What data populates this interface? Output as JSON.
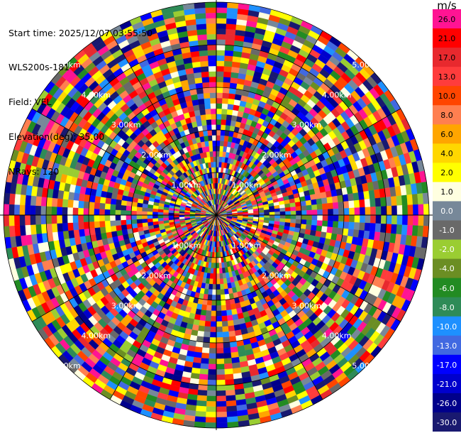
{
  "header": {
    "start_time": "Start time: 2025/12/07 03:55:50",
    "site": "WLS200s-181",
    "field": "Field: VEL",
    "elevation": "Elevation(deg): 35.00",
    "nrays": "NRays: 120"
  },
  "colorbar": {
    "unit": "m/s",
    "bins": [
      {
        "label": "26.0",
        "color": "#ff1493"
      },
      {
        "label": "21.0",
        "color": "#ff0000"
      },
      {
        "label": "17.0",
        "color": "#e8292e"
      },
      {
        "label": "13.0",
        "color": "#ff3c3c"
      },
      {
        "label": "10.0",
        "color": "#ff4500"
      },
      {
        "label": "8.0",
        "color": "#ff7f50"
      },
      {
        "label": "6.0",
        "color": "#ffa500"
      },
      {
        "label": "4.0",
        "color": "#ffd700"
      },
      {
        "label": "2.0",
        "color": "#ffff00"
      },
      {
        "label": "1.0",
        "color": "#ffffe0"
      },
      {
        "label": "0.0",
        "color": "#778899"
      },
      {
        "label": "-1.0",
        "color": "#696969"
      },
      {
        "label": "-2.0",
        "color": "#9acd32"
      },
      {
        "label": "-4.0",
        "color": "#6b8e23"
      },
      {
        "label": "-6.0",
        "color": "#228b22"
      },
      {
        "label": "-8.0",
        "color": "#2e8b57"
      },
      {
        "label": "-10.0",
        "color": "#1e90ff"
      },
      {
        "label": "-13.0",
        "color": "#4169e1"
      },
      {
        "label": "-17.0",
        "color": "#0000ff"
      },
      {
        "label": "-21.0",
        "color": "#0000cd"
      },
      {
        "label": "-26.0",
        "color": "#00008b"
      },
      {
        "label": "-30.0",
        "color": "#191970"
      }
    ]
  },
  "chart_data": {
    "type": "heatmap",
    "projection": "polar PPI",
    "field": "VEL",
    "elevation_deg": 35.0,
    "n_rays": 120,
    "value_range": [
      -30.0,
      26.0
    ],
    "max_range_km": 5.0,
    "range_rings_km": [
      1.0,
      2.0,
      3.0,
      4.0,
      5.0
    ],
    "ring_labels": [
      "1.00km",
      "2.00km",
      "3.00km",
      "4.00km",
      "5.00km"
    ],
    "grid": true
  }
}
